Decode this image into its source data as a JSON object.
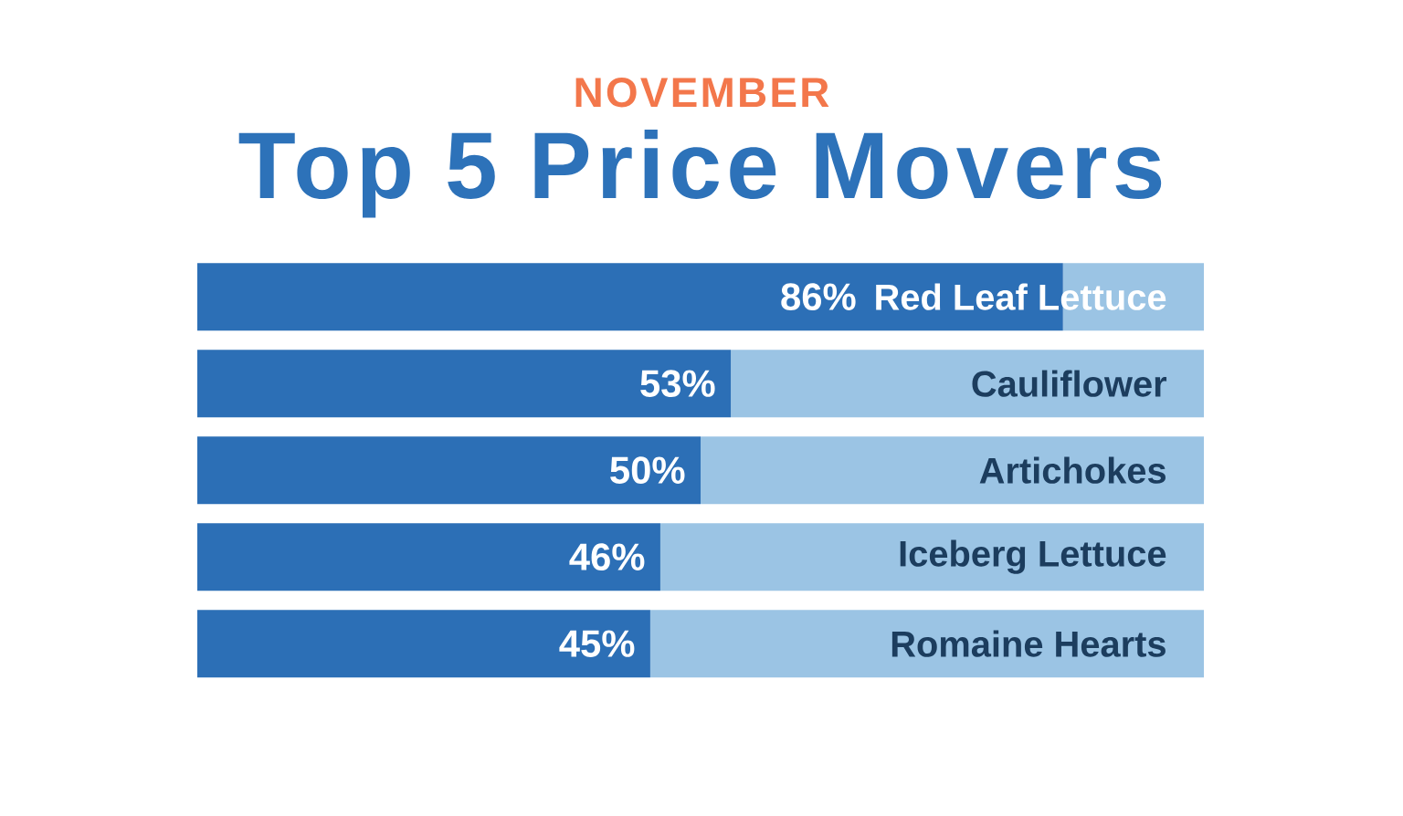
{
  "chart_data": {
    "type": "bar",
    "orientation": "horizontal",
    "stacked": true,
    "subtitle": "NOVEMBER",
    "title": "Top 5 Price Movers",
    "categories": [
      "Red Leaf Lettuce",
      "Cauliflower",
      "Artichokes",
      "Iceberg Lettuce",
      "Romaine Hearts"
    ],
    "series": [
      {
        "color": "#2c6fb6",
        "values": [
          86,
          53,
          50,
          46,
          45
        ],
        "value_labels": [
          "86%",
          "53%",
          "50%",
          "46%",
          "45%"
        ]
      },
      {
        "color": "#9bc4e4",
        "values": [
          14,
          47,
          50,
          54,
          55
        ]
      }
    ],
    "xlim": [
      0,
      100
    ],
    "tick_labels": "y"
  }
}
